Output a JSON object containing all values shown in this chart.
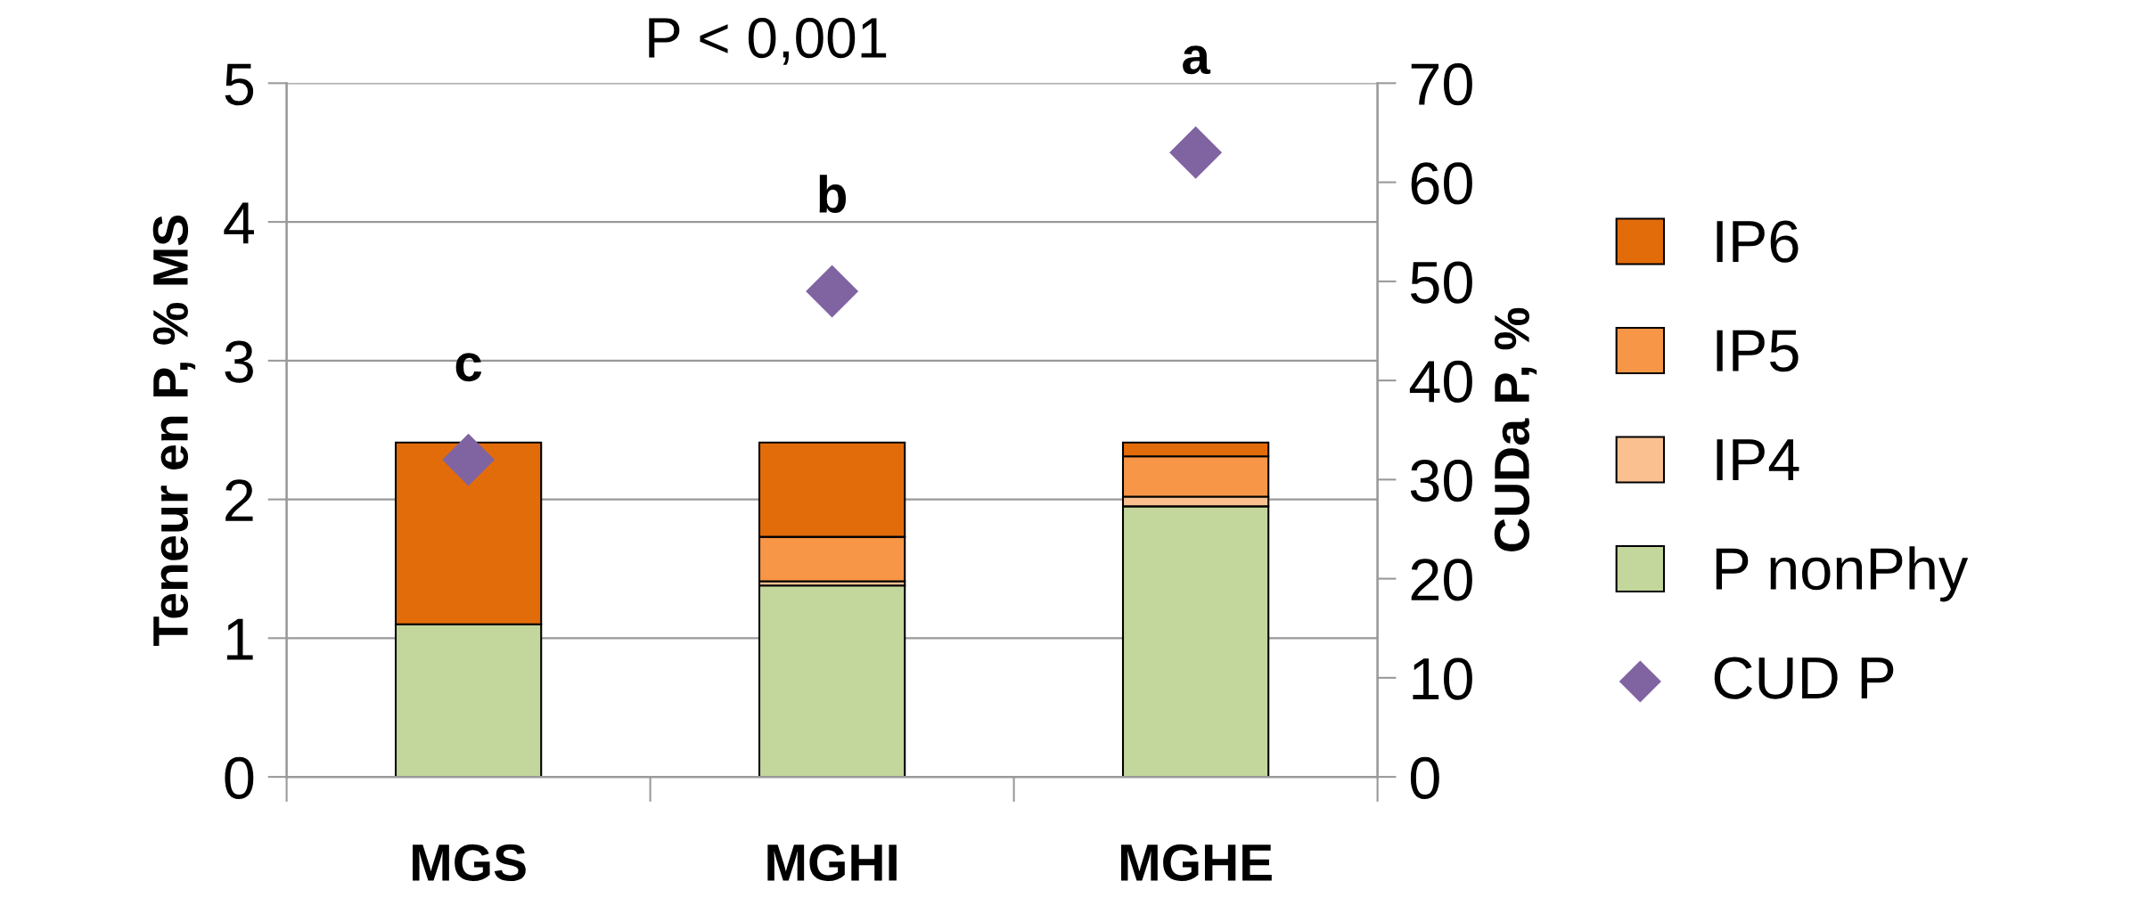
{
  "chart_data": {
    "type": "bar",
    "stacked": true,
    "categories": [
      "MGS",
      "MGHI",
      "MGHE"
    ],
    "series": [
      {
        "name": "P nonPhy",
        "color": "#c3d69b",
        "values": [
          1.1,
          1.38,
          1.95
        ]
      },
      {
        "name": "IP4",
        "color": "#fac090",
        "values": [
          0.0,
          0.03,
          0.07
        ]
      },
      {
        "name": "IP5",
        "color": "#f79646",
        "values": [
          0.0,
          0.32,
          0.29
        ]
      },
      {
        "name": "IP6",
        "color": "#e36c0a",
        "values": [
          1.31,
          0.68,
          0.1
        ]
      },
      {
        "name": "CUD P",
        "type": "scatter",
        "axis": "y2",
        "marker": "diamond",
        "color": "#8064a2",
        "values": [
          32,
          49,
          63
        ]
      }
    ],
    "ylabel": "Teneur en P, % MS",
    "y2label": "CUDa P, %",
    "ylim": [
      0,
      5
    ],
    "yticks": [
      0,
      1,
      2,
      3,
      4,
      5
    ],
    "y2lim": [
      0,
      70
    ],
    "y2ticks": [
      0,
      10,
      20,
      30,
      40,
      50,
      60,
      70
    ],
    "grid": "y",
    "legend": "right",
    "annotations": [
      "P < 0,001",
      "c",
      "b",
      "a"
    ]
  }
}
